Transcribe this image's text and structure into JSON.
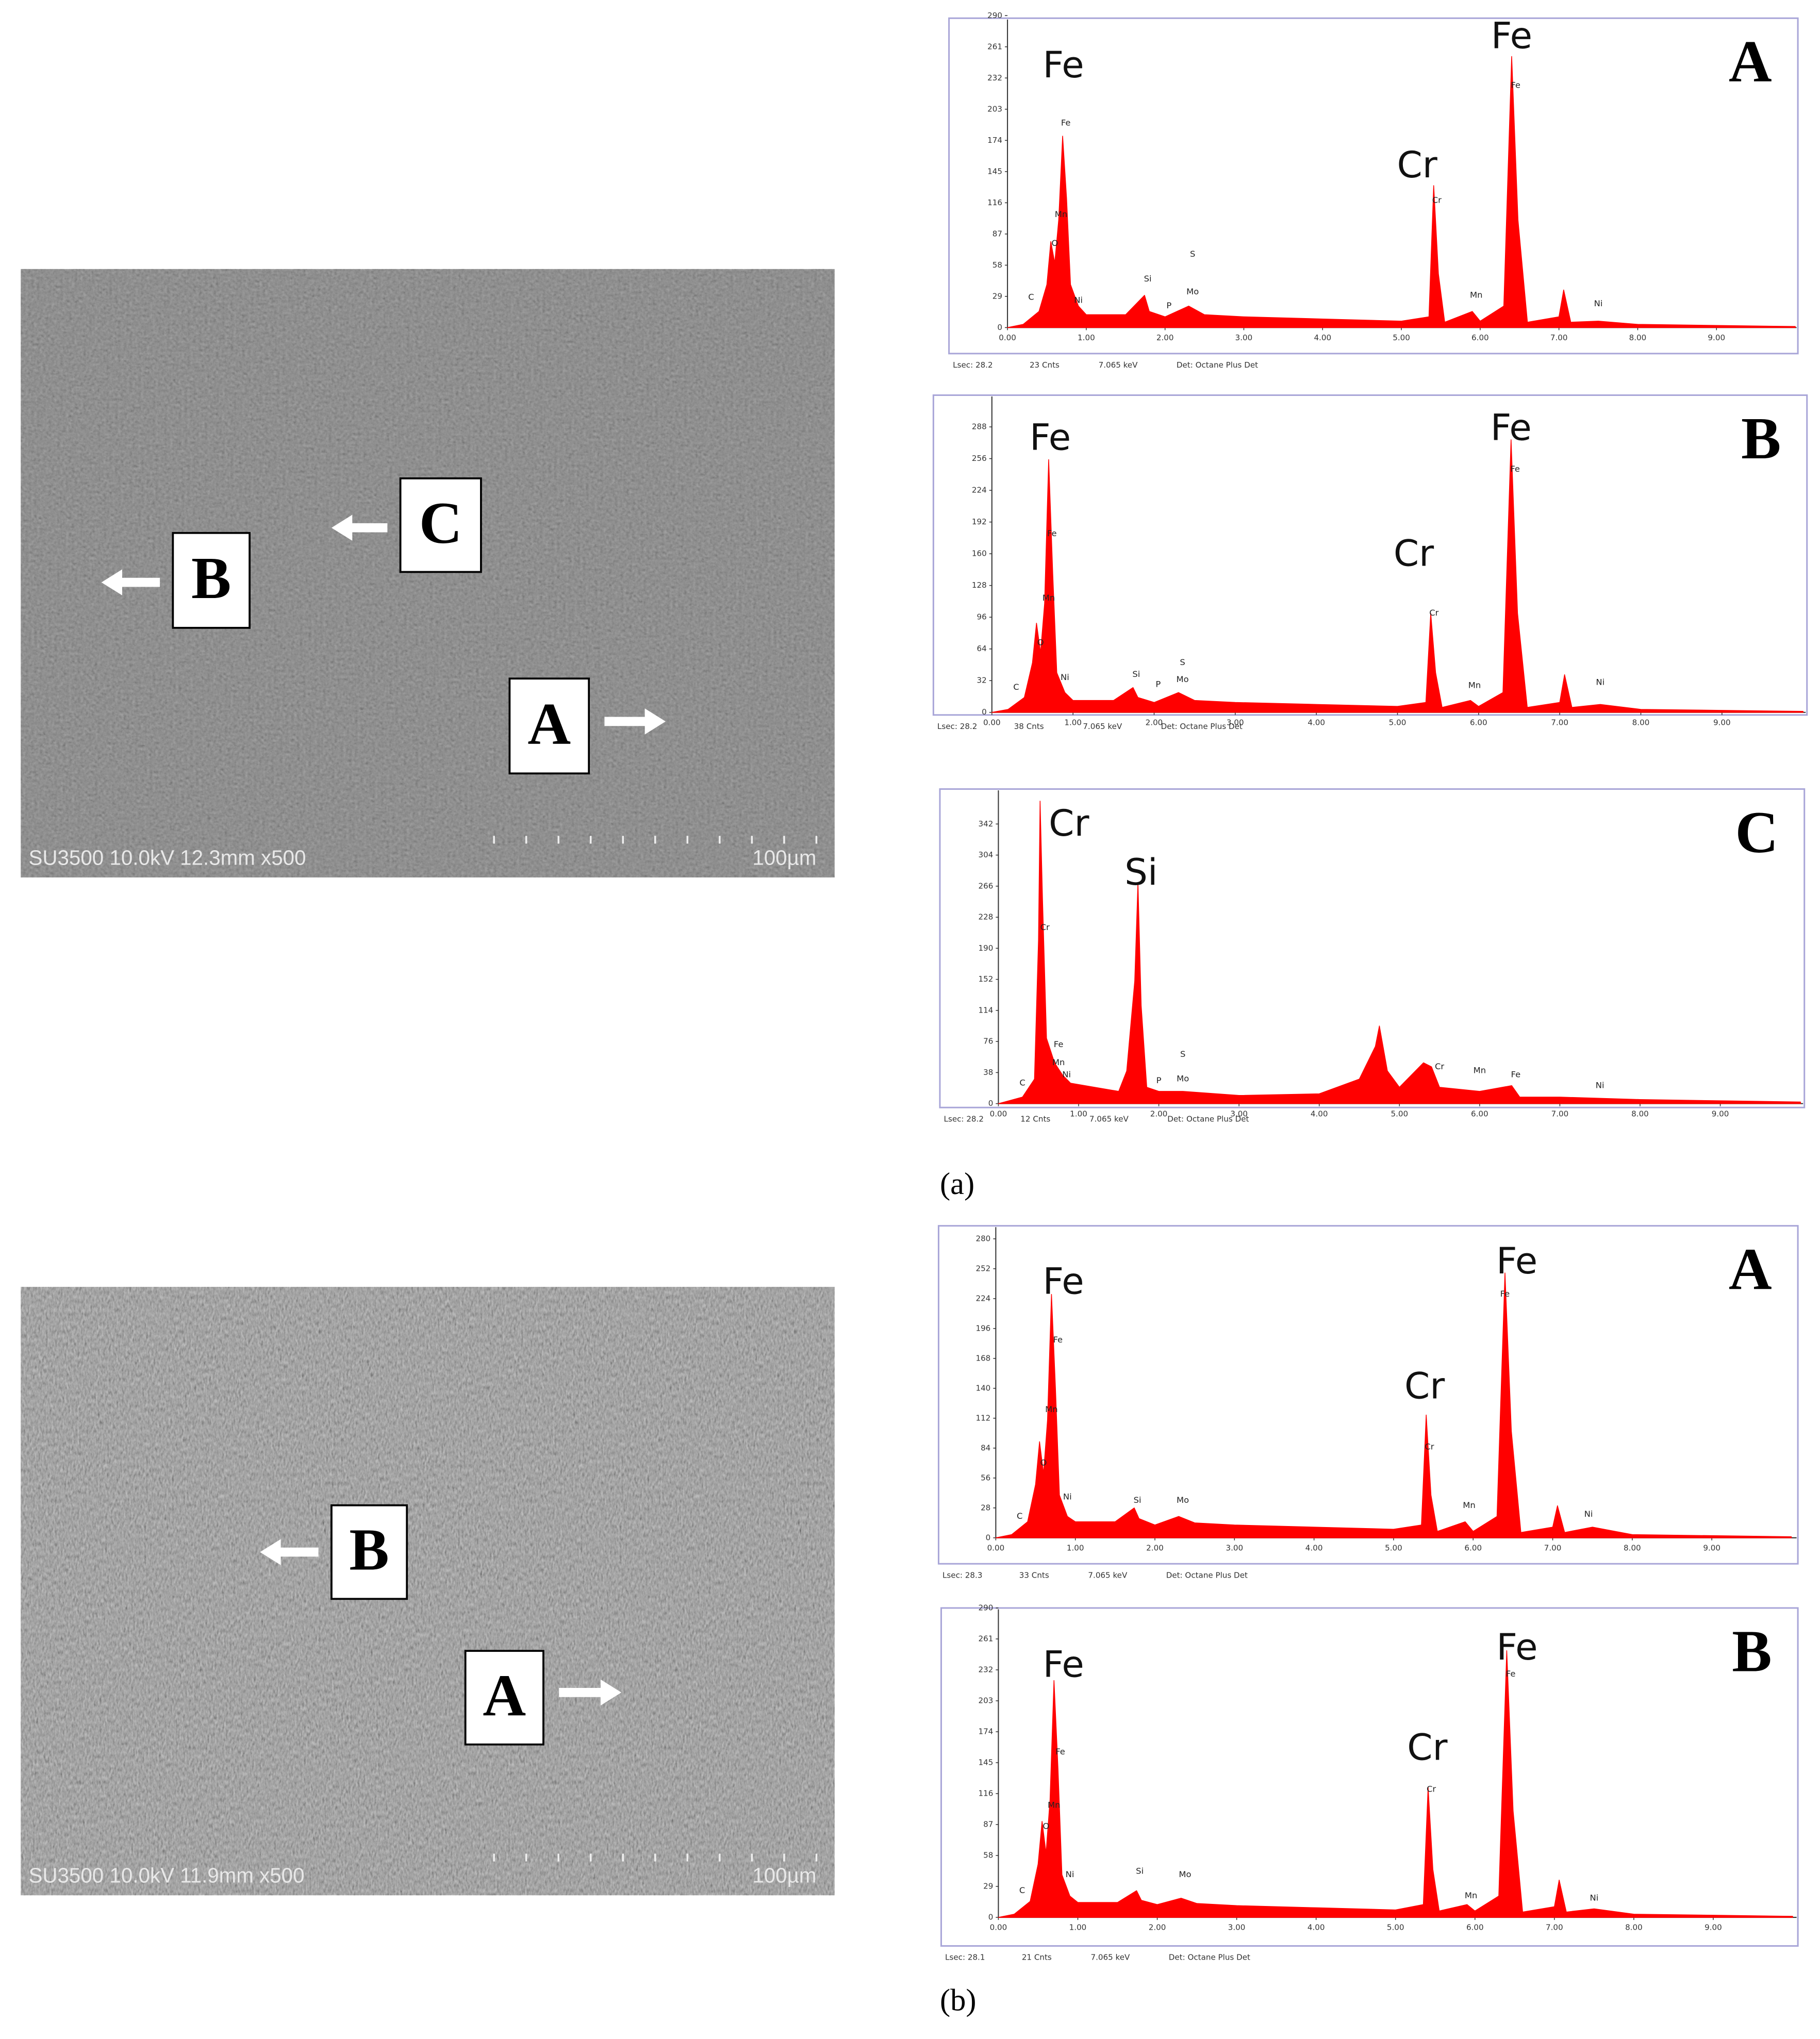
{
  "chart_data": [
    {
      "type": "area",
      "letter": "A",
      "color": "#ff0000",
      "x": [
        0,
        0.2,
        0.4,
        0.5,
        0.55,
        0.6,
        0.65,
        0.7,
        0.75,
        0.8,
        0.9,
        1.0,
        1.5,
        1.74,
        1.8,
        2.0,
        2.3,
        2.5,
        3.0,
        4.0,
        5.0,
        5.35,
        5.41,
        5.47,
        5.55,
        5.9,
        6.0,
        6.3,
        6.4,
        6.48,
        6.6,
        7.0,
        7.06,
        7.15,
        7.5,
        8.0,
        9.0,
        10.0
      ],
      "values": [
        0,
        3,
        15,
        40,
        80,
        60,
        100,
        178,
        120,
        40,
        20,
        12,
        12,
        30,
        15,
        10,
        20,
        12,
        10,
        8,
        6,
        10,
        132,
        50,
        5,
        15,
        6,
        20,
        252,
        100,
        5,
        10,
        35,
        5,
        6,
        3,
        2,
        1
      ],
      "xlim": [
        0,
        10
      ],
      "ylim": [
        0,
        290
      ],
      "xticks": [
        {
          "value": 0,
          "label": "0.00"
        },
        {
          "value": 1,
          "label": "1.00"
        },
        {
          "value": 2,
          "label": "2.00"
        },
        {
          "value": 3,
          "label": "3.00"
        },
        {
          "value": 4,
          "label": "4.00"
        },
        {
          "value": 5,
          "label": "5.00"
        },
        {
          "value": 6,
          "label": "6.00"
        },
        {
          "value": 7,
          "label": "7.00"
        },
        {
          "value": 8,
          "label": "8.00"
        },
        {
          "value": 9,
          "label": "9.00"
        }
      ],
      "yticks": [
        0,
        29,
        58,
        87,
        116,
        145,
        174,
        203,
        232,
        261,
        290
      ],
      "labels": [
        {
          "text": "Fe",
          "x": 0.71,
          "y": 242
        },
        {
          "text": "Cr",
          "x": 5.2,
          "y": 149
        },
        {
          "text": "Fe",
          "x": 6.4,
          "y": 269
        }
      ],
      "peak_labels": [
        {
          "text": "C",
          "x": 0.3,
          "y": 28
        },
        {
          "text": "O",
          "x": 0.6,
          "y": 78
        },
        {
          "text": "Mn",
          "x": 0.68,
          "y": 105
        },
        {
          "text": "Fe",
          "x": 0.74,
          "y": 190
        },
        {
          "text": "Ni",
          "x": 0.9,
          "y": 25
        },
        {
          "text": "Si",
          "x": 1.78,
          "y": 45
        },
        {
          "text": "P",
          "x": 2.05,
          "y": 20
        },
        {
          "text": "Mo",
          "x": 2.35,
          "y": 33
        },
        {
          "text": "S",
          "x": 2.35,
          "y": 68
        },
        {
          "text": "Cr",
          "x": 5.45,
          "y": 118
        },
        {
          "text": "Mn",
          "x": 5.95,
          "y": 30
        },
        {
          "text": "Fe",
          "x": 6.45,
          "y": 225
        },
        {
          "text": "Ni",
          "x": 7.5,
          "y": 22
        }
      ],
      "footer": [
        "Lsec: 28.2",
        "23 Cnts",
        "7.065 keV",
        "Det: Octane Plus Det"
      ]
    },
    {
      "type": "area",
      "letter": "B",
      "color": "#ff0000",
      "x": [
        0,
        0.2,
        0.4,
        0.5,
        0.55,
        0.6,
        0.65,
        0.7,
        0.75,
        0.8,
        0.9,
        1.0,
        1.5,
        1.74,
        1.8,
        2.0,
        2.3,
        2.5,
        3.0,
        4.0,
        5.0,
        5.35,
        5.41,
        5.47,
        5.55,
        5.9,
        6.0,
        6.3,
        6.4,
        6.48,
        6.6,
        7.0,
        7.06,
        7.15,
        7.5,
        8.0,
        9.0,
        10.0
      ],
      "values": [
        0,
        3,
        15,
        50,
        90,
        60,
        110,
        255,
        140,
        40,
        20,
        12,
        12,
        25,
        15,
        10,
        20,
        12,
        10,
        8,
        6,
        10,
        100,
        40,
        5,
        12,
        6,
        20,
        275,
        100,
        5,
        10,
        38,
        5,
        8,
        3,
        2,
        1
      ],
      "xlim": [
        0,
        10
      ],
      "ylim": [
        0,
        320
      ],
      "xticks": [
        {
          "value": 0,
          "label": "0.00"
        },
        {
          "value": 1,
          "label": "1.00"
        },
        {
          "value": 2,
          "label": "2.00"
        },
        {
          "value": 3,
          "label": "3.00"
        },
        {
          "value": 4,
          "label": "4.00"
        },
        {
          "value": 5,
          "label": "5.00"
        },
        {
          "value": 6,
          "label": "6.00"
        },
        {
          "value": 7,
          "label": "7.00"
        },
        {
          "value": 8,
          "label": "8.00"
        },
        {
          "value": 9,
          "label": "9.00"
        }
      ],
      "yticks": [
        0,
        32,
        64,
        96,
        128,
        160,
        192,
        224,
        256,
        288
      ],
      "labels": [
        {
          "text": "Fe",
          "x": 0.72,
          "y": 275
        },
        {
          "text": "Cr",
          "x": 5.2,
          "y": 158
        },
        {
          "text": "Fe",
          "x": 6.4,
          "y": 285
        }
      ],
      "peak_labels": [
        {
          "text": "C",
          "x": 0.3,
          "y": 25
        },
        {
          "text": "O",
          "x": 0.6,
          "y": 70
        },
        {
          "text": "Mn",
          "x": 0.7,
          "y": 115
        },
        {
          "text": "Fe",
          "x": 0.74,
          "y": 180
        },
        {
          "text": "Ni",
          "x": 0.9,
          "y": 35
        },
        {
          "text": "Si",
          "x": 1.78,
          "y": 38
        },
        {
          "text": "P",
          "x": 2.05,
          "y": 28
        },
        {
          "text": "S",
          "x": 2.35,
          "y": 50
        },
        {
          "text": "Mo",
          "x": 2.35,
          "y": 33
        },
        {
          "text": "Cr",
          "x": 5.45,
          "y": 100
        },
        {
          "text": "Mn",
          "x": 5.95,
          "y": 27
        },
        {
          "text": "Fe",
          "x": 6.45,
          "y": 245
        },
        {
          "text": "Ni",
          "x": 7.5,
          "y": 30
        }
      ],
      "footer": [
        "Lsec: 28.2",
        "38 Cnts",
        "7.065 keV",
        "Det: Octane Plus Det"
      ]
    },
    {
      "type": "area",
      "letter": "C",
      "color": "#ff0000",
      "x": [
        0,
        0.3,
        0.45,
        0.5,
        0.52,
        0.55,
        0.6,
        0.7,
        0.8,
        0.9,
        1.2,
        1.5,
        1.6,
        1.7,
        1.74,
        1.78,
        1.85,
        2.0,
        2.3,
        3.0,
        4.0,
        4.5,
        4.7,
        4.75,
        4.85,
        5.0,
        5.3,
        5.4,
        5.5,
        6.0,
        6.4,
        6.5,
        7.0,
        8.0,
        10.0
      ],
      "values": [
        0,
        8,
        30,
        200,
        370,
        250,
        80,
        50,
        35,
        25,
        20,
        15,
        40,
        150,
        270,
        120,
        20,
        15,
        15,
        10,
        12,
        30,
        70,
        95,
        40,
        20,
        50,
        45,
        20,
        15,
        22,
        8,
        8,
        5,
        2
      ],
      "xlim": [
        0,
        10
      ],
      "ylim": [
        0,
        380
      ],
      "xticks": [
        {
          "value": 0,
          "label": "0.00"
        },
        {
          "value": 1,
          "label": "1.00"
        },
        {
          "value": 2,
          "label": "2.00"
        },
        {
          "value": 3,
          "label": "3.00"
        },
        {
          "value": 4,
          "label": "4.00"
        },
        {
          "value": 5,
          "label": "5.00"
        },
        {
          "value": 6,
          "label": "6.00"
        },
        {
          "value": 7,
          "label": "7.00"
        },
        {
          "value": 8,
          "label": "8.00"
        },
        {
          "value": 9,
          "label": "9.00"
        }
      ],
      "yticks": [
        0,
        38,
        76,
        114,
        152,
        190,
        228,
        266,
        304,
        342
      ],
      "labels": [
        {
          "text": "Cr",
          "x": 0.88,
          "y": 340
        },
        {
          "text": "Si",
          "x": 1.78,
          "y": 280
        }
      ],
      "peak_labels": [
        {
          "text": "C",
          "x": 0.3,
          "y": 25
        },
        {
          "text": "Cr",
          "x": 0.58,
          "y": 215
        },
        {
          "text": "Fe",
          "x": 0.75,
          "y": 72
        },
        {
          "text": "Mn",
          "x": 0.75,
          "y": 50
        },
        {
          "text": "Ni",
          "x": 0.85,
          "y": 35
        },
        {
          "text": "P",
          "x": 2.0,
          "y": 28
        },
        {
          "text": "Mo",
          "x": 2.3,
          "y": 30
        },
        {
          "text": "S",
          "x": 2.3,
          "y": 60
        },
        {
          "text": "Cr",
          "x": 5.5,
          "y": 45
        },
        {
          "text": "Mn",
          "x": 6.0,
          "y": 40
        },
        {
          "text": "Fe",
          "x": 6.45,
          "y": 35
        },
        {
          "text": "Ni",
          "x": 7.5,
          "y": 22
        }
      ],
      "footer": [
        "Lsec: 28.2",
        "12 Cnts",
        "7.065 keV",
        "Det: Octane Plus Det"
      ]
    },
    {
      "type": "area",
      "letter": "A",
      "color": "#ff0000",
      "x": [
        0,
        0.2,
        0.4,
        0.5,
        0.55,
        0.6,
        0.65,
        0.7,
        0.75,
        0.8,
        0.9,
        1.0,
        1.5,
        1.74,
        1.8,
        2.0,
        2.3,
        2.5,
        3.0,
        4.0,
        5.0,
        5.35,
        5.41,
        5.47,
        5.55,
        5.9,
        6.0,
        6.3,
        6.4,
        6.48,
        6.6,
        7.0,
        7.06,
        7.15,
        7.5,
        8.0,
        9.0,
        10.0
      ],
      "values": [
        0,
        3,
        15,
        50,
        90,
        60,
        110,
        228,
        140,
        40,
        20,
        15,
        15,
        28,
        18,
        12,
        20,
        14,
        12,
        10,
        8,
        12,
        115,
        40,
        6,
        15,
        6,
        20,
        248,
        100,
        5,
        10,
        30,
        5,
        10,
        3,
        2,
        1
      ],
      "xlim": [
        0,
        10
      ],
      "ylim": [
        0,
        280
      ],
      "xticks": [
        {
          "value": 0,
          "label": "0.00"
        },
        {
          "value": 1,
          "label": "1.00"
        },
        {
          "value": 2,
          "label": "2.00"
        },
        {
          "value": 3,
          "label": "3.00"
        },
        {
          "value": 4,
          "label": "4.00"
        },
        {
          "value": 5,
          "label": "5.00"
        },
        {
          "value": 6,
          "label": "6.00"
        },
        {
          "value": 7,
          "label": "7.00"
        },
        {
          "value": 8,
          "label": "8.00"
        },
        {
          "value": 9,
          "label": "9.00"
        }
      ],
      "yticks": [
        0,
        28,
        56,
        84,
        112,
        140,
        168,
        196,
        224,
        252,
        280
      ],
      "labels": [
        {
          "text": "Fe",
          "x": 0.85,
          "y": 238
        },
        {
          "text": "Cr",
          "x": 5.39,
          "y": 140
        },
        {
          "text": "Fe",
          "x": 6.55,
          "y": 257
        }
      ],
      "peak_labels": [
        {
          "text": "C",
          "x": 0.3,
          "y": 20
        },
        {
          "text": "O",
          "x": 0.6,
          "y": 70
        },
        {
          "text": "Mn",
          "x": 0.7,
          "y": 120
        },
        {
          "text": "Fe",
          "x": 0.78,
          "y": 185
        },
        {
          "text": "Ni",
          "x": 0.9,
          "y": 38
        },
        {
          "text": "Si",
          "x": 1.78,
          "y": 35
        },
        {
          "text": "Mo",
          "x": 2.35,
          "y": 35
        },
        {
          "text": "Cr",
          "x": 5.45,
          "y": 85
        },
        {
          "text": "Mn",
          "x": 5.95,
          "y": 30
        },
        {
          "text": "Fe",
          "x": 6.4,
          "y": 228
        },
        {
          "text": "Ni",
          "x": 7.45,
          "y": 22
        }
      ],
      "footer": [
        "Lsec: 28.3",
        "33 Cnts",
        "7.065 keV",
        "Det: Octane Plus Det"
      ]
    },
    {
      "type": "area",
      "letter": "B",
      "color": "#ff0000",
      "x": [
        0,
        0.2,
        0.4,
        0.5,
        0.55,
        0.6,
        0.65,
        0.7,
        0.75,
        0.8,
        0.9,
        1.0,
        1.5,
        1.74,
        1.8,
        2.0,
        2.3,
        2.5,
        3.0,
        4.0,
        5.0,
        5.35,
        5.41,
        5.47,
        5.55,
        5.9,
        6.0,
        6.3,
        6.4,
        6.48,
        6.6,
        7.0,
        7.06,
        7.15,
        7.5,
        8.0,
        9.0,
        10.0
      ],
      "values": [
        0,
        3,
        15,
        50,
        90,
        60,
        110,
        222,
        140,
        40,
        20,
        14,
        14,
        25,
        16,
        12,
        18,
        13,
        11,
        9,
        7,
        12,
        122,
        45,
        6,
        12,
        6,
        20,
        250,
        100,
        5,
        10,
        35,
        5,
        8,
        3,
        2,
        1
      ],
      "xlim": [
        0,
        10
      ],
      "ylim": [
        0,
        290
      ],
      "xticks": [
        {
          "value": 0,
          "label": "0.00"
        },
        {
          "value": 1,
          "label": "1.00"
        },
        {
          "value": 2,
          "label": "2.00"
        },
        {
          "value": 3,
          "label": "3.00"
        },
        {
          "value": 4,
          "label": "4.00"
        },
        {
          "value": 5,
          "label": "5.00"
        },
        {
          "value": 6,
          "label": "6.00"
        },
        {
          "value": 7,
          "label": "7.00"
        },
        {
          "value": 8,
          "label": "8.00"
        },
        {
          "value": 9,
          "label": "9.00"
        }
      ],
      "yticks": [
        0,
        29,
        58,
        87,
        116,
        145,
        174,
        203,
        232,
        261,
        290
      ],
      "labels": [
        {
          "text": "Fe",
          "x": 0.82,
          "y": 235
        },
        {
          "text": "Cr",
          "x": 5.4,
          "y": 157
        },
        {
          "text": "Fe",
          "x": 6.53,
          "y": 251
        }
      ],
      "peak_labels": [
        {
          "text": "C",
          "x": 0.3,
          "y": 25
        },
        {
          "text": "O",
          "x": 0.6,
          "y": 85
        },
        {
          "text": "Mn",
          "x": 0.7,
          "y": 105
        },
        {
          "text": "Fe",
          "x": 0.78,
          "y": 155
        },
        {
          "text": "Ni",
          "x": 0.9,
          "y": 40
        },
        {
          "text": "Si",
          "x": 1.78,
          "y": 43
        },
        {
          "text": "Mo",
          "x": 2.35,
          "y": 40
        },
        {
          "text": "Cr",
          "x": 5.45,
          "y": 120
        },
        {
          "text": "Mn",
          "x": 5.95,
          "y": 20
        },
        {
          "text": "Fe",
          "x": 6.45,
          "y": 228
        },
        {
          "text": "Ni",
          "x": 7.5,
          "y": 18
        }
      ],
      "footer": [
        "Lsec: 28.1",
        "21 Cnts",
        "7.065 keV",
        "Det: Octane Plus Det"
      ]
    }
  ],
  "images": [
    {
      "caption": "SU3500 10.0kV 12.3mm x500",
      "scale_label": "100µm",
      "markers": [
        "C",
        "B",
        "A"
      ]
    },
    {
      "caption": "SU3500 10.0kV 11.9mm x500",
      "scale_label": "100µm",
      "markers": [
        "B",
        "A"
      ]
    }
  ],
  "panel_labels": [
    "(a)",
    "(b)"
  ]
}
